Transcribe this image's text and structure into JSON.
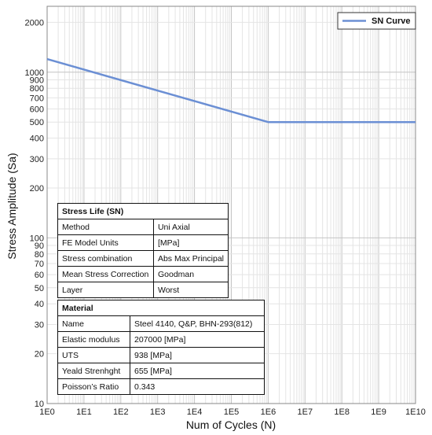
{
  "chart_data": {
    "type": "line",
    "xlabel": "Num of Cycles (N)",
    "ylabel": "Stress Amplitude (Sa)",
    "x_scale": "log",
    "y_scale": "log",
    "xlim": [
      1,
      10000000000
    ],
    "ylim": [
      10,
      2500
    ],
    "x_ticks": [
      {
        "value": 1,
        "label": "1E0"
      },
      {
        "value": 10,
        "label": "1E1"
      },
      {
        "value": 100,
        "label": "1E2"
      },
      {
        "value": 1000,
        "label": "1E3"
      },
      {
        "value": 10000,
        "label": "1E4"
      },
      {
        "value": 100000,
        "label": "1E5"
      },
      {
        "value": 1000000,
        "label": "1E6"
      },
      {
        "value": 10000000,
        "label": "1E7"
      },
      {
        "value": 100000000,
        "label": "1E8"
      },
      {
        "value": 1000000000,
        "label": "1E9"
      },
      {
        "value": 10000000000,
        "label": "1E10"
      }
    ],
    "y_ticks": [
      {
        "value": 10,
        "label": "10"
      },
      {
        "value": 20,
        "label": "20"
      },
      {
        "value": 30,
        "label": "30"
      },
      {
        "value": 40,
        "label": "40"
      },
      {
        "value": 50,
        "label": "50"
      },
      {
        "value": 60,
        "label": "60"
      },
      {
        "value": 70,
        "label": "70"
      },
      {
        "value": 80,
        "label": "80"
      },
      {
        "value": 90,
        "label": "90"
      },
      {
        "value": 100,
        "label": "100"
      },
      {
        "value": 200,
        "label": "200"
      },
      {
        "value": 300,
        "label": "300"
      },
      {
        "value": 400,
        "label": "400"
      },
      {
        "value": 500,
        "label": "500"
      },
      {
        "value": 600,
        "label": "600"
      },
      {
        "value": 700,
        "label": "700"
      },
      {
        "value": 800,
        "label": "800"
      },
      {
        "value": 900,
        "label": "900"
      },
      {
        "value": 1000,
        "label": "1000"
      },
      {
        "value": 2000,
        "label": "2000"
      }
    ],
    "grid": true,
    "legend_position": "top-right",
    "series": [
      {
        "name": "SN Curve",
        "color": "#6b8fd4",
        "x": [
          1,
          1000000,
          10000000000
        ],
        "y": [
          1200,
          500,
          500
        ]
      }
    ]
  },
  "stress_life_table": {
    "title": "Stress Life (SN)",
    "rows": [
      {
        "label": "Method",
        "value": "Uni Axial"
      },
      {
        "label": "FE Model Units",
        "value": "[MPa]"
      },
      {
        "label": "Stress combination",
        "value": "Abs Max Principal"
      },
      {
        "label": "Mean Stress Correction",
        "value": "Goodman"
      },
      {
        "label": "Layer",
        "value": "Worst"
      }
    ]
  },
  "material_table": {
    "title": "Material",
    "rows": [
      {
        "label": "Name",
        "value": "Steel 4140, Q&P, BHN-293(812)"
      },
      {
        "label": "Elastic modulus",
        "value": "207000 [MPa]"
      },
      {
        "label": "UTS",
        "value": "938 [MPa]"
      },
      {
        "label": "Yeald Strenhght",
        "value": "655 [MPa]"
      },
      {
        "label": "Poisson’s Ratio",
        "value": "0.343"
      }
    ]
  }
}
